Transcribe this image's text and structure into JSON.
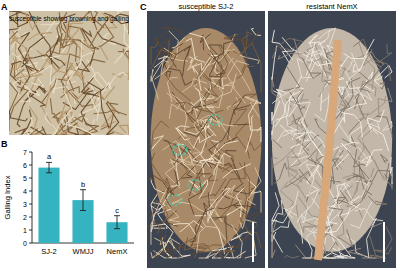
{
  "chart_data": {
    "type": "bar",
    "y_label": "Galling Index",
    "categories": [
      "SJ-2",
      "WMJJ",
      "NemX"
    ],
    "values": [
      5.8,
      3.3,
      1.6
    ],
    "errors": [
      0.4,
      0.8,
      0.5
    ],
    "annotations": [
      "a",
      "b",
      "c"
    ],
    "color": "#35b3c1",
    "ylim": [
      0,
      7
    ],
    "yticks": [
      0,
      1,
      2,
      3,
      4,
      5,
      6,
      7
    ],
    "grid": false
  },
  "figure": {
    "panels": [
      {
        "label": "A",
        "captions": [
          "susceptible showing browning and galling"
        ]
      },
      {
        "label": "B",
        "captions": []
      },
      {
        "label": "C",
        "captions": [
          "susceptible SJ-2",
          "resistant NemX"
        ]
      }
    ]
  }
}
